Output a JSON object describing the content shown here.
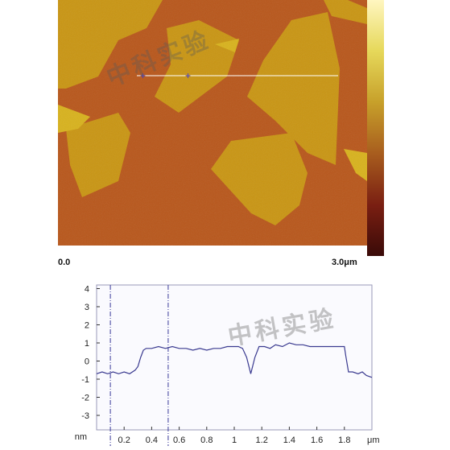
{
  "image": {
    "scale_start": "0.0",
    "scale_end": "3.0",
    "scale_unit": "μm",
    "watermark": "中科实验"
  },
  "colors": {
    "substrate": "#b8561a",
    "flake": "#c99512",
    "flake_bright": "#d8b21c",
    "line_cut": "#ffffff",
    "cursor": "#3b3bd6",
    "trace": "#3a3a90",
    "colorbar": [
      "#fff6c0",
      "#e6d85a",
      "#c7a02a",
      "#a85d1e",
      "#7a1f12",
      "#3a0a08"
    ]
  },
  "chart_data": {
    "type": "line",
    "title": "",
    "xlabel": "μm",
    "ylabel": "nm",
    "xlim": [
      0,
      2.0
    ],
    "ylim": [
      -3.8,
      4.2
    ],
    "x_ticks": [
      "0.2",
      "0.4",
      "0.6",
      "0.8",
      "1",
      "1.2",
      "1.4",
      "1.6",
      "1.8"
    ],
    "y_ticks": [
      "4",
      "3",
      "2",
      "1",
      "0",
      "-1",
      "-2",
      "-3"
    ],
    "cursors": [
      0.1,
      0.52
    ],
    "grid": false,
    "series": [
      {
        "name": "",
        "x": [
          0.0,
          0.04,
          0.08,
          0.12,
          0.16,
          0.2,
          0.24,
          0.28,
          0.3,
          0.32,
          0.34,
          0.36,
          0.4,
          0.45,
          0.5,
          0.55,
          0.6,
          0.65,
          0.7,
          0.75,
          0.8,
          0.85,
          0.9,
          0.95,
          1.0,
          1.03,
          1.06,
          1.09,
          1.12,
          1.15,
          1.18,
          1.22,
          1.26,
          1.3,
          1.35,
          1.4,
          1.45,
          1.5,
          1.55,
          1.6,
          1.65,
          1.7,
          1.75,
          1.8,
          1.81,
          1.83,
          1.86,
          1.9,
          1.93,
          1.96,
          2.0
        ],
        "y": [
          -0.7,
          -0.6,
          -0.7,
          -0.6,
          -0.7,
          -0.6,
          -0.7,
          -0.5,
          -0.3,
          0.2,
          0.6,
          0.7,
          0.7,
          0.8,
          0.7,
          0.8,
          0.7,
          0.7,
          0.6,
          0.7,
          0.6,
          0.7,
          0.7,
          0.8,
          0.8,
          0.8,
          0.7,
          0.2,
          -0.7,
          0.2,
          0.8,
          0.8,
          0.7,
          0.9,
          0.8,
          1.0,
          0.9,
          0.9,
          0.8,
          0.8,
          0.8,
          0.8,
          0.8,
          0.8,
          0.3,
          -0.6,
          -0.6,
          -0.7,
          -0.6,
          -0.8,
          -0.9
        ]
      }
    ]
  }
}
